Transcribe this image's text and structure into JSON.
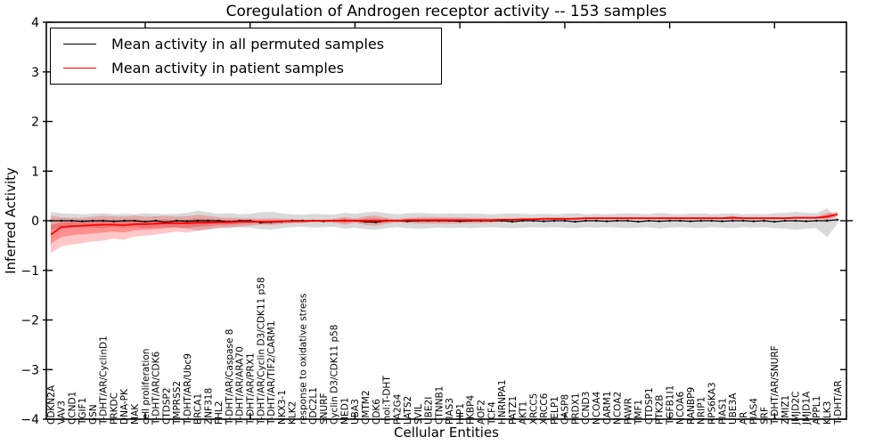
{
  "figure": {
    "title": "Coregulation of Androgen receptor activity -- 153 samples",
    "xlabel": "Cellular Entities",
    "ylabel": "Inferred Activity"
  },
  "chart_data": {
    "type": "line",
    "title": "Coregulation of Androgen receptor activity -- 153 samples",
    "xlabel": "Cellular Entities",
    "ylabel": "Inferred Activity",
    "ylim": [
      -4,
      4
    ],
    "yticks": [
      4,
      3,
      2,
      1,
      0,
      -1,
      -2,
      -3,
      -4
    ],
    "grid": false,
    "legend_position": "upper left",
    "categories": [
      "CDKN2A",
      "VAV3",
      "CCND1",
      "TGIF1",
      "GSN",
      "T-DHT/AR/CyclinD1",
      "PRKDC",
      "DNA-PK",
      "MAK",
      "cell proliferation",
      "T-DHT/AR/CDK6",
      "CTDSP2",
      "TMPRSS2",
      "T-DHT/AR/Ubc9",
      "BRCA1",
      "ZNF318",
      "FHL2",
      "T-DHT/AR/Caspase 8",
      "T-DHT/AR/ARA70",
      "T-DHT/AR/PRX1",
      "T-DHT/AR/Cyclin D3/CDK11 p58",
      "T-DHT/AR/TIF2/CARM1",
      "NKX3-1",
      "KLK2",
      "response to oxidative stress",
      "CDC2L1",
      "SNURF",
      "Cyclin D3/CDK11 p58",
      "MED1",
      "UBA3",
      "CMTM2",
      "CDK6",
      "mol:T-DHT",
      "PA2G4",
      "LATS2",
      "SVIL",
      "UBE2I",
      "CTNNB1",
      "PIAS3",
      "HIP1",
      "FKBP4",
      "AOF2",
      "TCF4",
      "HNRNPA1",
      "PATZ1",
      "AKT1",
      "XRCC5",
      "XRCC6",
      "PELP1",
      "CASP8",
      "PRDX1",
      "CCND3",
      "NCOA4",
      "CARM1",
      "NCOA2",
      "PAWR",
      "TMF1",
      "CTDSP1",
      "PTK2B",
      "TGFB1I1",
      "NCOA6",
      "RANBP9",
      "NRIP1",
      "RPS6KA3",
      "PIAS1",
      "UBE3A",
      "AR",
      "PIAS4",
      "SRF",
      "T-DHT/AR/SNURF",
      "ZMIZ1",
      "JMJD2C",
      "JMJD1A",
      "APPL1",
      "KLK3",
      "T-DHT/AR"
    ],
    "series": [
      {
        "name": "Mean activity in all permuted samples",
        "color": "#000000",
        "style": "line-with-dot-markers",
        "values": [
          0,
          0,
          0,
          -0.01,
          0,
          0,
          -0.01,
          0,
          0,
          -0.02,
          0,
          -0.03,
          0,
          -0.01,
          0,
          0,
          0,
          -0.02,
          0,
          0,
          -0.04,
          -0.03,
          -0.02,
          0,
          0,
          0,
          -0.01,
          0,
          0,
          0,
          -0.02,
          -0.03,
          0,
          0,
          -0.01,
          0,
          0,
          0,
          0,
          -0.01,
          0,
          0,
          0,
          0,
          -0.02,
          0,
          0,
          -0.01,
          0,
          0,
          -0.02,
          0,
          0,
          -0.01,
          0,
          0,
          -0.02,
          0,
          -0.01,
          0,
          0,
          -0.01,
          0,
          0,
          -0.01,
          0,
          0,
          -0.01,
          0,
          -0.02,
          0,
          0,
          -0.01,
          0,
          0,
          0.02
        ]
      },
      {
        "name": "Mean activity in patient samples",
        "color": "#ff0000",
        "style": "line",
        "values": [
          -0.28,
          -0.13,
          -0.11,
          -0.1,
          -0.09,
          -0.08,
          -0.08,
          -0.09,
          -0.07,
          -0.07,
          -0.06,
          -0.05,
          -0.05,
          -0.05,
          -0.04,
          -0.04,
          -0.03,
          -0.03,
          -0.02,
          -0.02,
          -0.02,
          -0.02,
          -0.01,
          -0.01,
          -0.01,
          0,
          0,
          0,
          0,
          0,
          0,
          0,
          0,
          0,
          0.01,
          0.01,
          0.01,
          0.01,
          0.01,
          0.01,
          0.01,
          0.01,
          0.01,
          0.02,
          0.02,
          0.03,
          0.03,
          0.04,
          0.04,
          0.04,
          0.04,
          0.05,
          0.05,
          0.05,
          0.05,
          0.05,
          0.05,
          0.05,
          0.05,
          0.05,
          0.05,
          0.05,
          0.05,
          0.05,
          0.05,
          0.06,
          0.05,
          0.05,
          0.05,
          0.05,
          0.05,
          0.06,
          0.06,
          0.06,
          0.08,
          0.13
        ]
      }
    ],
    "bands": [
      {
        "name": "permuted-samples-range",
        "color": "#808080",
        "opacity": 0.3,
        "upper": [
          0.18,
          0.15,
          0.14,
          0.13,
          0.14,
          0.15,
          0.13,
          0.14,
          0.13,
          0.15,
          0.14,
          0.13,
          0.14,
          0.16,
          0.2,
          0.17,
          0.14,
          0.15,
          0.13,
          0.14,
          0.17,
          0.18,
          0.15,
          0.13,
          0.12,
          0.14,
          0.13,
          0.12,
          0.16,
          0.14,
          0.17,
          0.18,
          0.15,
          0.13,
          0.15,
          0.16,
          0.15,
          0.14,
          0.15,
          0.14,
          0.15,
          0.14,
          0.13,
          0.14,
          0.15,
          0.14,
          0.13,
          0.14,
          0.13,
          0.14,
          0.15,
          0.13,
          0.14,
          0.13,
          0.14,
          0.15,
          0.14,
          0.13,
          0.16,
          0.14,
          0.13,
          0.14,
          0.15,
          0.13,
          0.14,
          0.15,
          0.13,
          0.14,
          0.13,
          0.15,
          0.16,
          0.18,
          0.16,
          0.15,
          0.25,
          0.04
        ],
        "lower": [
          -0.18,
          -0.15,
          -0.14,
          -0.13,
          -0.14,
          -0.15,
          -0.13,
          -0.14,
          -0.13,
          -0.15,
          -0.14,
          -0.13,
          -0.14,
          -0.16,
          -0.2,
          -0.17,
          -0.14,
          -0.15,
          -0.13,
          -0.14,
          -0.17,
          -0.18,
          -0.15,
          -0.13,
          -0.12,
          -0.14,
          -0.13,
          -0.12,
          -0.16,
          -0.14,
          -0.17,
          -0.18,
          -0.15,
          -0.13,
          -0.15,
          -0.16,
          -0.15,
          -0.14,
          -0.15,
          -0.14,
          -0.15,
          -0.14,
          -0.13,
          -0.14,
          -0.15,
          -0.14,
          -0.13,
          -0.14,
          -0.13,
          -0.14,
          -0.15,
          -0.13,
          -0.14,
          -0.13,
          -0.14,
          -0.15,
          -0.14,
          -0.13,
          -0.16,
          -0.14,
          -0.13,
          -0.14,
          -0.15,
          -0.13,
          -0.14,
          -0.15,
          -0.13,
          -0.14,
          -0.13,
          -0.15,
          -0.16,
          -0.18,
          -0.16,
          -0.15,
          -0.33,
          -0.06
        ]
      },
      {
        "name": "patient-samples-range-outer",
        "color": "#ff0000",
        "opacity": 0.22,
        "upper": [
          0.1,
          0.07,
          0.06,
          0.06,
          0.08,
          0.1,
          0.09,
          0.08,
          0.1,
          0.08,
          0.09,
          0.1,
          0.08,
          0.09,
          0.12,
          0.1,
          0.07,
          0.06,
          0.05,
          0.05,
          0.04,
          0.05,
          0.04,
          0.03,
          0.02,
          0.02,
          0.02,
          0.03,
          0.08,
          0.04,
          0.09,
          0.1,
          0.06,
          0.03,
          0.06,
          0.07,
          0.07,
          0.07,
          0.07,
          0.07,
          0.06,
          0.06,
          0.05,
          0.05,
          0.05,
          0.05,
          0.05,
          0.06,
          0.06,
          0.06,
          0.06,
          0.07,
          0.07,
          0.07,
          0.07,
          0.07,
          0.07,
          0.07,
          0.07,
          0.07,
          0.07,
          0.07,
          0.07,
          0.07,
          0.07,
          0.1,
          0.07,
          0.07,
          0.07,
          0.07,
          0.07,
          0.08,
          0.08,
          0.08,
          0.16,
          0.18
        ],
        "lower": [
          -0.65,
          -0.52,
          -0.48,
          -0.45,
          -0.42,
          -0.4,
          -0.36,
          -0.38,
          -0.32,
          -0.3,
          -0.28,
          -0.25,
          -0.22,
          -0.24,
          -0.2,
          -0.18,
          -0.15,
          -0.13,
          -0.12,
          -0.1,
          -0.08,
          -0.09,
          -0.07,
          -0.05,
          -0.04,
          -0.03,
          -0.03,
          -0.04,
          -0.08,
          -0.04,
          -0.09,
          -0.1,
          -0.06,
          -0.03,
          -0.05,
          -0.06,
          -0.06,
          -0.06,
          -0.06,
          -0.06,
          -0.05,
          -0.05,
          -0.04,
          -0.02,
          -0.01,
          0,
          0.01,
          0.02,
          0.02,
          0.02,
          0.02,
          0.03,
          0.03,
          0.03,
          0.03,
          0.03,
          0.03,
          0.03,
          0.03,
          0.03,
          0.03,
          0.03,
          0.03,
          0.03,
          0.03,
          0.02,
          0.03,
          0.03,
          0.03,
          0.03,
          0.03,
          0.04,
          0.04,
          0.04,
          0.02,
          0.08
        ]
      },
      {
        "name": "patient-samples-range-inner",
        "color": "#ff0000",
        "opacity": 0.28,
        "scale_of_outer": 0.5
      }
    ]
  }
}
